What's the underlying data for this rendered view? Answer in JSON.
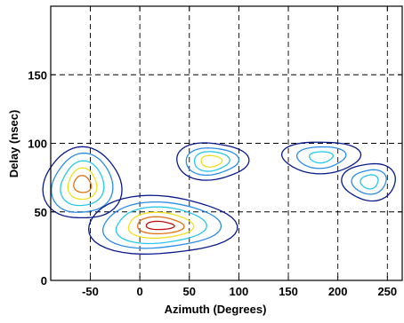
{
  "chart_data": {
    "type": "contour",
    "xlabel": "Azimuth (Degrees)",
    "ylabel": "Delay (nsec)",
    "xlim": [
      -90,
      265
    ],
    "ylim": [
      0,
      200
    ],
    "xticks": [
      -50,
      0,
      50,
      100,
      150,
      200,
      250
    ],
    "yticks": [
      0,
      50,
      100,
      150
    ],
    "grid": "dashed",
    "contour_level_colors": [
      "#0a1a8c",
      "#2a8ce8",
      "#28c8e8",
      "#f0e020",
      "#e07010",
      "#c01010"
    ],
    "clusters": [
      {
        "center": {
          "x": -58,
          "y": 70
        },
        "levels": [
          {
            "rx": 38,
            "ry": 27
          },
          {
            "rx": 30,
            "ry": 22
          },
          {
            "rx": 22,
            "ry": 16
          },
          {
            "rx": 15,
            "ry": 11
          },
          {
            "rx": 9,
            "ry": 6
          }
        ]
      },
      {
        "center": {
          "x": 20,
          "y": 40
        },
        "levels": [
          {
            "rx": 72,
            "ry": 22
          },
          {
            "rx": 58,
            "ry": 17
          },
          {
            "rx": 46,
            "ry": 13
          },
          {
            "rx": 34,
            "ry": 9
          },
          {
            "rx": 24,
            "ry": 6
          },
          {
            "rx": 14,
            "ry": 3
          }
        ]
      },
      {
        "center": {
          "x": 72,
          "y": 87
        },
        "levels": [
          {
            "rx": 35,
            "ry": 14
          },
          {
            "rx": 26,
            "ry": 10
          },
          {
            "rx": 18,
            "ry": 7
          },
          {
            "rx": 11,
            "ry": 4
          }
        ]
      },
      {
        "center": {
          "x": 183,
          "y": 90
        },
        "levels": [
          {
            "rx": 38,
            "ry": 12
          },
          {
            "rx": 24,
            "ry": 8
          },
          {
            "rx": 12,
            "ry": 4
          }
        ]
      },
      {
        "center": {
          "x": 232,
          "y": 72
        },
        "levels": [
          {
            "rx": 26,
            "ry": 14
          },
          {
            "rx": 17,
            "ry": 9
          },
          {
            "rx": 9,
            "ry": 5
          }
        ]
      }
    ]
  }
}
